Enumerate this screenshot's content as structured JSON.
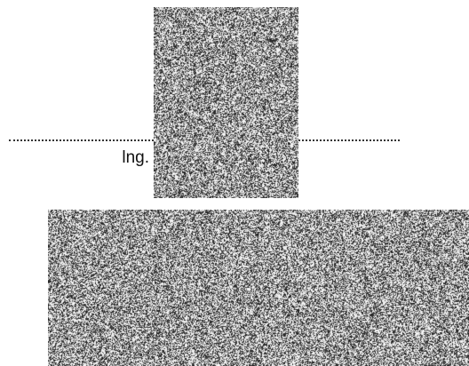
{
  "caption": {
    "text": "lng."
  },
  "panels": {
    "top": {
      "icon": "noise-image"
    },
    "bottom": {
      "icon": "noise-image"
    }
  },
  "colors": {
    "background": "#ffffff",
    "line": "#333333",
    "noise_dark": "#1a1a1a",
    "noise_light": "#ffffff"
  }
}
